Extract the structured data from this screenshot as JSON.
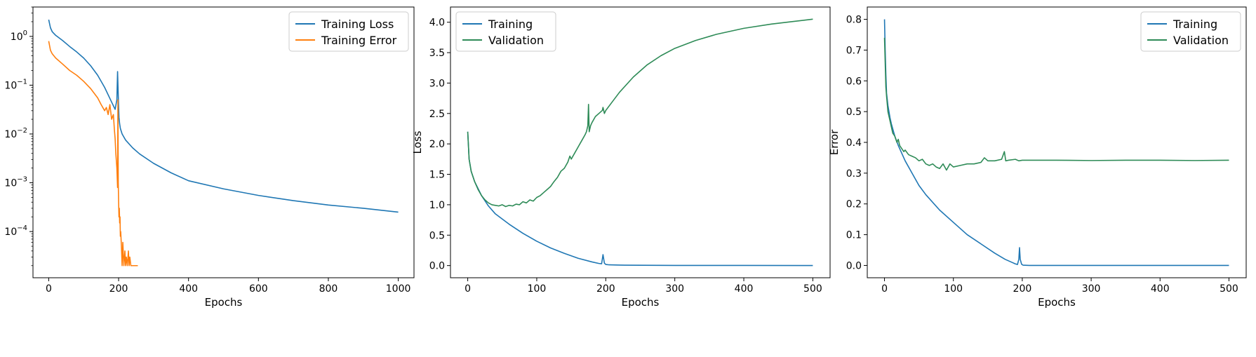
{
  "chart_data": [
    {
      "type": "line",
      "xlabel": "Epochs",
      "ylabel": "",
      "yscale": "log",
      "xlim": [
        -45,
        1045
      ],
      "ylim": [
        1.13e-05,
        4.0
      ],
      "xticks": [
        0,
        200,
        400,
        600,
        800,
        1000
      ],
      "yticks": [
        {
          "value": 0.0001,
          "base": "10",
          "exp": "−4"
        },
        {
          "value": 0.001,
          "base": "10",
          "exp": "−3"
        },
        {
          "value": 0.01,
          "base": "10",
          "exp": "−2"
        },
        {
          "value": 0.1,
          "base": "10",
          "exp": "−1"
        },
        {
          "value": 1,
          "base": "10",
          "exp": "0"
        }
      ],
      "legend_position": "top-right",
      "series": [
        {
          "name": "Training Loss",
          "color": "#1f77b4",
          "x": [
            0,
            5,
            10,
            20,
            40,
            60,
            80,
            100,
            120,
            140,
            160,
            180,
            190,
            195,
            197,
            199,
            201,
            203,
            205,
            210,
            220,
            240,
            260,
            300,
            350,
            400,
            500,
            600,
            700,
            800,
            900,
            1000
          ],
          "y": [
            2.2,
            1.5,
            1.25,
            1.05,
            0.82,
            0.62,
            0.48,
            0.36,
            0.25,
            0.16,
            0.09,
            0.045,
            0.032,
            0.05,
            0.19,
            0.06,
            0.022,
            0.016,
            0.013,
            0.01,
            0.0075,
            0.0052,
            0.0039,
            0.0025,
            0.0016,
            0.0011,
            0.00075,
            0.00055,
            0.00043,
            0.00035,
            0.0003,
            0.00025
          ]
        },
        {
          "name": "Training Error",
          "color": "#ff7f0e",
          "x": [
            0,
            5,
            10,
            20,
            40,
            60,
            80,
            100,
            120,
            140,
            150,
            160,
            165,
            170,
            175,
            180,
            185,
            188,
            190,
            192,
            195,
            197,
            198,
            199,
            200,
            201,
            202,
            203,
            204,
            205,
            206,
            208,
            210,
            212,
            215,
            218,
            220,
            222,
            225,
            228,
            230,
            232,
            235,
            240,
            245,
            250,
            255
          ],
          "y": [
            0.8,
            0.52,
            0.44,
            0.36,
            0.27,
            0.2,
            0.16,
            0.12,
            0.085,
            0.055,
            0.04,
            0.03,
            0.035,
            0.025,
            0.04,
            0.02,
            0.025,
            0.012,
            0.008,
            0.004,
            0.002,
            0.0008,
            0.05,
            0.001,
            0.0004,
            0.0002,
            0.0003,
            0.00015,
            0.0002,
            8e-05,
            0.0001,
            5e-05,
            2e-05,
            6e-05,
            2e-05,
            4e-05,
            2e-05,
            3e-05,
            2e-05,
            4e-05,
            2e-05,
            3e-05,
            2e-05,
            2e-05,
            2e-05,
            2e-05,
            2e-05
          ]
        }
      ]
    },
    {
      "type": "line",
      "xlabel": "Epochs",
      "ylabel": "Loss",
      "xlim": [
        -25,
        525
      ],
      "ylim": [
        -0.2,
        4.25
      ],
      "xticks": [
        0,
        100,
        200,
        300,
        400,
        500
      ],
      "yticks": [
        0.0,
        0.5,
        1.0,
        1.5,
        2.0,
        2.5,
        3.0,
        3.5,
        4.0
      ],
      "ytick_labels": [
        "0.0",
        "0.5",
        "1.0",
        "1.5",
        "2.0",
        "2.5",
        "3.0",
        "3.5",
        "4.0"
      ],
      "legend_position": "top-left",
      "series": [
        {
          "name": "Training",
          "color": "#1f77b4",
          "x": [
            0,
            2,
            5,
            10,
            20,
            30,
            40,
            60,
            80,
            100,
            120,
            140,
            160,
            180,
            190,
            194,
            196,
            198,
            200,
            205,
            220,
            250,
            300,
            400,
            500
          ],
          "y": [
            2.2,
            1.75,
            1.55,
            1.38,
            1.15,
            0.98,
            0.85,
            0.68,
            0.53,
            0.4,
            0.29,
            0.2,
            0.12,
            0.06,
            0.035,
            0.03,
            0.18,
            0.04,
            0.018,
            0.012,
            0.008,
            0.005,
            0.003,
            0.002,
            0.001
          ]
        },
        {
          "name": "Validation",
          "color": "#2e8b57",
          "x": [
            0,
            2,
            5,
            10,
            15,
            20,
            25,
            30,
            35,
            40,
            45,
            50,
            55,
            60,
            65,
            70,
            75,
            80,
            85,
            90,
            95,
            100,
            105,
            110,
            115,
            120,
            125,
            130,
            135,
            140,
            145,
            148,
            150,
            155,
            160,
            165,
            170,
            172,
            174,
            175,
            176,
            178,
            180,
            185,
            190,
            195,
            196,
            198,
            200,
            210,
            220,
            240,
            260,
            280,
            300,
            330,
            360,
            400,
            440,
            470,
            500
          ],
          "y": [
            2.2,
            1.75,
            1.55,
            1.38,
            1.25,
            1.15,
            1.08,
            1.03,
            1.0,
            0.99,
            0.98,
            1.0,
            0.97,
            0.99,
            0.98,
            1.01,
            1.0,
            1.05,
            1.03,
            1.08,
            1.06,
            1.12,
            1.15,
            1.2,
            1.25,
            1.3,
            1.38,
            1.45,
            1.55,
            1.6,
            1.7,
            1.8,
            1.75,
            1.85,
            1.95,
            2.05,
            2.15,
            2.2,
            2.3,
            2.65,
            2.2,
            2.3,
            2.35,
            2.45,
            2.5,
            2.55,
            2.6,
            2.5,
            2.55,
            2.7,
            2.85,
            3.1,
            3.3,
            3.45,
            3.57,
            3.7,
            3.8,
            3.9,
            3.97,
            4.01,
            4.05
          ]
        }
      ]
    },
    {
      "type": "line",
      "xlabel": "Epochs",
      "ylabel": "Error",
      "xlim": [
        -25,
        525
      ],
      "ylim": [
        -0.04,
        0.84
      ],
      "xticks": [
        0,
        100,
        200,
        300,
        400,
        500
      ],
      "yticks": [
        0.0,
        0.1,
        0.2,
        0.3,
        0.4,
        0.5,
        0.6,
        0.7,
        0.8
      ],
      "ytick_labels": [
        "0.0",
        "0.1",
        "0.2",
        "0.3",
        "0.4",
        "0.5",
        "0.6",
        "0.7",
        "0.8"
      ],
      "legend_position": "top-right",
      "series": [
        {
          "name": "Training",
          "color": "#1f77b4",
          "x": [
            0,
            1,
            2,
            3,
            5,
            8,
            10,
            15,
            20,
            30,
            40,
            50,
            60,
            80,
            100,
            120,
            140,
            160,
            175,
            185,
            190,
            193,
            195,
            196,
            197,
            199,
            201,
            210,
            250,
            300,
            400,
            500
          ],
          "y": [
            0.8,
            0.7,
            0.62,
            0.56,
            0.52,
            0.48,
            0.46,
            0.42,
            0.39,
            0.34,
            0.3,
            0.26,
            0.23,
            0.18,
            0.14,
            0.1,
            0.07,
            0.04,
            0.02,
            0.01,
            0.005,
            0.003,
            0.02,
            0.058,
            0.02,
            0.004,
            0.001,
            0.0,
            0.0,
            0.0,
            0.0,
            0.0
          ]
        },
        {
          "name": "Validation",
          "color": "#2e8b57",
          "x": [
            0,
            1,
            2,
            3,
            5,
            8,
            10,
            12,
            15,
            18,
            20,
            22,
            25,
            28,
            30,
            35,
            40,
            45,
            50,
            55,
            60,
            65,
            70,
            75,
            80,
            85,
            90,
            95,
            100,
            110,
            120,
            130,
            140,
            145,
            150,
            160,
            170,
            174,
            176,
            180,
            190,
            195,
            200,
            220,
            250,
            300,
            350,
            400,
            450,
            500
          ],
          "y": [
            0.74,
            0.66,
            0.58,
            0.55,
            0.5,
            0.47,
            0.45,
            0.43,
            0.42,
            0.4,
            0.41,
            0.39,
            0.38,
            0.37,
            0.375,
            0.36,
            0.355,
            0.35,
            0.34,
            0.345,
            0.33,
            0.325,
            0.33,
            0.32,
            0.315,
            0.33,
            0.31,
            0.33,
            0.32,
            0.325,
            0.33,
            0.33,
            0.335,
            0.35,
            0.34,
            0.34,
            0.345,
            0.37,
            0.34,
            0.342,
            0.345,
            0.34,
            0.342,
            0.342,
            0.342,
            0.341,
            0.342,
            0.342,
            0.341,
            0.342
          ]
        }
      ]
    }
  ]
}
